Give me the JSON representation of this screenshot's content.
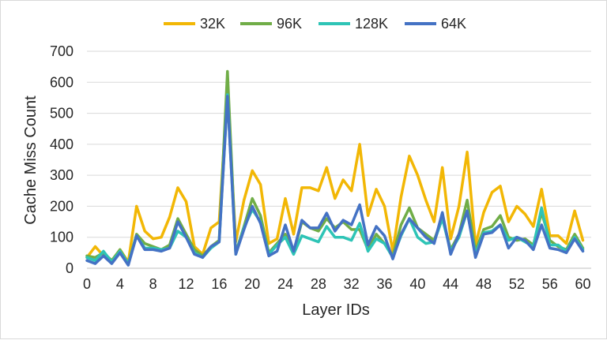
{
  "chart_data": {
    "type": "line",
    "xlabel": "Layer IDs",
    "ylabel": "Cache Miss Count",
    "xlim": [
      0,
      61
    ],
    "ylim": [
      0,
      700
    ],
    "x_ticks": [
      0,
      4,
      8,
      12,
      16,
      20,
      24,
      28,
      32,
      36,
      40,
      44,
      48,
      52,
      56,
      60
    ],
    "y_ticks": [
      0,
      100,
      200,
      300,
      400,
      500,
      600,
      700
    ],
    "grid": "horizontal",
    "legend_position": "top",
    "x": [
      0,
      1,
      2,
      3,
      4,
      5,
      6,
      7,
      8,
      9,
      10,
      11,
      12,
      13,
      14,
      15,
      16,
      17,
      18,
      19,
      20,
      21,
      22,
      23,
      24,
      25,
      26,
      27,
      28,
      29,
      30,
      31,
      32,
      33,
      34,
      35,
      36,
      37,
      38,
      39,
      40,
      41,
      42,
      43,
      44,
      45,
      46,
      47,
      48,
      49,
      50,
      51,
      52,
      53,
      54,
      55,
      56,
      57,
      58,
      59,
      60
    ],
    "series": [
      {
        "name": "32K",
        "color": "#f2b705",
        "values": [
          35,
          70,
          40,
          20,
          60,
          20,
          200,
          120,
          95,
          100,
          165,
          260,
          215,
          70,
          45,
          130,
          150,
          570,
          85,
          220,
          315,
          270,
          80,
          95,
          225,
          110,
          260,
          260,
          250,
          325,
          225,
          285,
          250,
          400,
          170,
          255,
          200,
          55,
          230,
          362,
          300,
          220,
          150,
          325,
          95,
          200,
          375,
          75,
          180,
          245,
          265,
          150,
          200,
          175,
          135,
          255,
          105,
          105,
          80,
          185,
          90
        ]
      },
      {
        "name": "96K",
        "color": "#70ad47",
        "values": [
          40,
          35,
          50,
          25,
          60,
          15,
          110,
          80,
          70,
          60,
          75,
          160,
          110,
          60,
          40,
          70,
          90,
          635,
          50,
          135,
          225,
          170,
          50,
          80,
          110,
          50,
          150,
          130,
          120,
          160,
          130,
          150,
          125,
          125,
          60,
          110,
          80,
          40,
          140,
          195,
          130,
          110,
          90,
          165,
          60,
          110,
          220,
          55,
          125,
          135,
          170,
          100,
          90,
          95,
          75,
          180,
          90,
          70,
          60,
          110,
          65
        ]
      },
      {
        "name": "128K",
        "color": "#2ec4b6",
        "values": [
          35,
          25,
          55,
          20,
          55,
          15,
          105,
          65,
          65,
          60,
          65,
          120,
          100,
          50,
          35,
          65,
          85,
          560,
          45,
          130,
          190,
          150,
          45,
          75,
          100,
          45,
          105,
          95,
          85,
          135,
          100,
          100,
          90,
          145,
          55,
          95,
          80,
          35,
          105,
          160,
          100,
          80,
          85,
          160,
          55,
          100,
          185,
          45,
          115,
          120,
          140,
          90,
          100,
          85,
          70,
          195,
          75,
          75,
          55,
          100,
          60
        ]
      },
      {
        "name": "64K",
        "color": "#4472c4",
        "values": [
          25,
          15,
          40,
          15,
          50,
          10,
          105,
          60,
          60,
          55,
          65,
          150,
          100,
          45,
          35,
          70,
          85,
          555,
          45,
          125,
          200,
          145,
          40,
          55,
          140,
          55,
          155,
          130,
          130,
          178,
          120,
          155,
          140,
          205,
          75,
          135,
          105,
          30,
          110,
          160,
          130,
          100,
          80,
          180,
          45,
          110,
          185,
          35,
          110,
          115,
          140,
          65,
          100,
          90,
          60,
          140,
          65,
          60,
          50,
          95,
          55
        ]
      }
    ]
  }
}
